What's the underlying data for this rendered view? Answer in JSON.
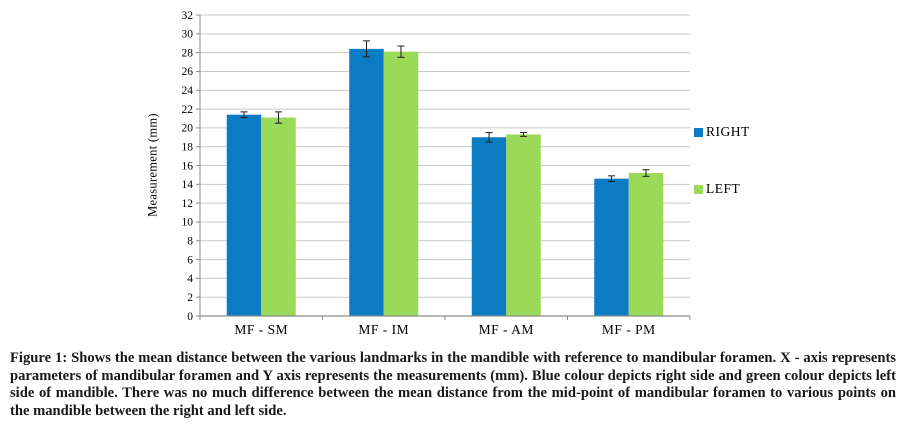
{
  "figure": {
    "caption_label": "Figure 1:",
    "caption_text": "Shows the mean distance between the various landmarks in the mandible with reference to mandibular foramen. X - axis represents parameters of mandibular foramen and Y axis represents the measurements (mm). Blue colour depicts right side and green colour depicts left side of mandible. There was no much difference between the mean distance from the mid-point of mandibular foramen to various points on the mandible between the right and left side."
  },
  "chart_data": {
    "type": "bar",
    "title": "",
    "xlabel": "",
    "ylabel": "Measurement  (mm)",
    "categories": [
      "MF - SM",
      "MF - IM",
      "MF - AM",
      "MF - PM"
    ],
    "series": [
      {
        "name": "RIGHT",
        "color": "#0B7CC4",
        "values": [
          21.4,
          28.4,
          19.0,
          14.6
        ],
        "errors": [
          0.3,
          0.85,
          0.5,
          0.3
        ]
      },
      {
        "name": "LEFT",
        "color": "#9ADA58",
        "values": [
          21.1,
          28.1,
          19.3,
          15.2
        ],
        "errors": [
          0.6,
          0.6,
          0.2,
          0.35
        ]
      }
    ],
    "ylim": [
      0,
      32
    ],
    "ytick_step": 2,
    "grid": true,
    "error_bars": true,
    "legend_position": "right",
    "colors": {
      "gridline": "#C9C9C2",
      "axis": "#8C8C86",
      "error_bar": "#1a1a1a",
      "tick_label": "#000000"
    }
  }
}
